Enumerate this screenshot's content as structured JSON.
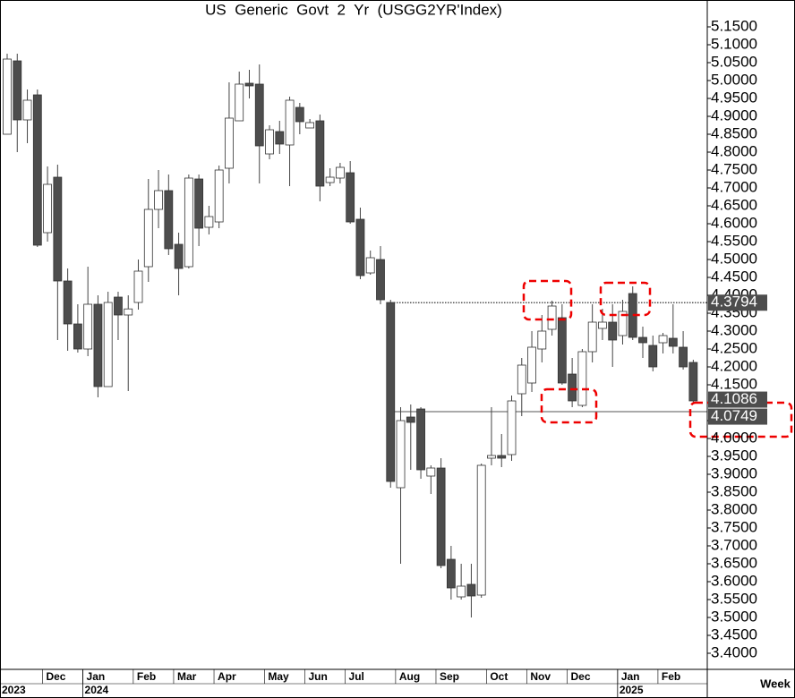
{
  "chart_data": {
    "type": "candlestick",
    "title": "US  Generic  Govt  2  Yr  (USGG2YR'Index)",
    "title_color": "#4b4bdd",
    "x_label": "Week",
    "categories": [
      null,
      null,
      null,
      null,
      "Dec",
      null,
      null,
      null,
      "Jan",
      null,
      null,
      null,
      null,
      "Feb",
      null,
      null,
      null,
      "Mar",
      null,
      null,
      null,
      "Apr",
      null,
      null,
      null,
      null,
      "May",
      null,
      null,
      null,
      "Jun",
      null,
      null,
      null,
      "Jul",
      null,
      null,
      null,
      null,
      "Aug",
      null,
      null,
      null,
      "Sep",
      null,
      null,
      null,
      null,
      "Oct",
      null,
      null,
      null,
      "Nov",
      null,
      null,
      null,
      "Dec",
      null,
      null,
      null,
      null,
      "Jan",
      null,
      null,
      null,
      "Feb",
      null,
      null,
      null
    ],
    "year_categories": [
      "2023",
      null,
      null,
      null,
      null,
      null,
      null,
      null,
      "2024",
      null,
      null,
      null,
      null,
      null,
      null,
      null,
      null,
      null,
      null,
      null,
      null,
      null,
      null,
      null,
      null,
      null,
      null,
      null,
      null,
      null,
      null,
      null,
      null,
      null,
      null,
      null,
      null,
      null,
      null,
      null,
      null,
      null,
      null,
      null,
      null,
      null,
      null,
      null,
      null,
      null,
      null,
      null,
      null,
      null,
      null,
      null,
      null,
      null,
      null,
      null,
      null,
      "2025",
      null,
      null,
      null,
      null,
      null,
      null,
      null
    ],
    "open": [
      4.85,
      5.055,
      4.89,
      4.96,
      4.575,
      4.73,
      4.44,
      4.32,
      4.25,
      4.375,
      4.145,
      4.395,
      4.345,
      4.38,
      4.48,
      4.64,
      4.6925,
      4.5425,
      4.48,
      4.725,
      4.59,
      4.605,
      4.755,
      4.8875,
      4.9925,
      4.99,
      4.795,
      4.8575,
      4.82,
      4.925,
      4.8675,
      4.8875,
      4.715,
      4.7275,
      4.7425,
      4.6125,
      4.4625,
      4.5,
      4.38,
      3.8625,
      4.06,
      4.0825,
      3.895,
      3.9175,
      3.6625,
      3.5575,
      3.5925,
      3.5625,
      3.945,
      3.9525,
      3.955,
      4.125,
      4.155,
      4.25,
      4.305,
      4.3375,
      4.18,
      4.0925,
      4.2425,
      4.3075,
      4.325,
      4.2875,
      4.405,
      4.2825,
      4.26,
      4.2675,
      4.28,
      4.255,
      4.2125
    ],
    "high": [
      5.075,
      5.075,
      4.975,
      4.975,
      4.76,
      4.765,
      4.475,
      4.375,
      4.48,
      4.4,
      4.41,
      4.41,
      4.4,
      4.5,
      4.725,
      4.75,
      4.7375,
      4.575,
      4.7375,
      4.7375,
      4.65,
      4.7625,
      4.995,
      5.025,
      5.03,
      5.045,
      4.875,
      4.8875,
      4.955,
      4.9375,
      4.8925,
      4.905,
      4.755,
      4.77,
      4.775,
      4.645,
      4.525,
      4.5375,
      4.3875,
      4.0875,
      4.095,
      4.0875,
      3.925,
      3.945,
      3.7,
      3.65,
      3.65,
      3.93,
      4.0875,
      4.0125,
      4.12,
      4.225,
      4.3,
      4.345,
      4.385,
      4.375,
      4.225,
      4.25,
      4.375,
      4.3625,
      4.375,
      4.3875,
      4.425,
      4.3125,
      4.2875,
      4.295,
      4.375,
      4.3,
      4.22
    ],
    "low": [
      4.85,
      4.8,
      4.825,
      4.535,
      4.55,
      4.275,
      4.245,
      4.24,
      4.23,
      4.115,
      4.145,
      4.275,
      4.1325,
      4.36,
      4.4375,
      4.5875,
      4.5125,
      4.4,
      4.475,
      4.5375,
      4.57,
      4.5875,
      4.7125,
      4.8875,
      4.95,
      4.7125,
      4.78,
      4.795,
      4.705,
      4.85,
      4.8675,
      4.6625,
      4.705,
      4.7125,
      4.6,
      4.445,
      4.4575,
      4.375,
      3.8625,
      3.65,
      3.9125,
      3.8875,
      3.845,
      3.6375,
      3.55,
      3.55,
      3.5,
      3.555,
      3.925,
      3.92,
      3.9375,
      4.0625,
      4.13,
      4.2125,
      4.2875,
      4.15,
      4.0875,
      4.0875,
      4.2125,
      4.275,
      4.2,
      4.2625,
      4.275,
      4.225,
      4.1875,
      4.2375,
      4.2375,
      4.1925,
      4.1
    ],
    "close": [
      5.06,
      4.89,
      4.945,
      4.54,
      4.71,
      4.44,
      4.32,
      4.25,
      4.375,
      4.145,
      4.38,
      4.345,
      4.362,
      4.4675,
      4.64,
      4.6925,
      4.53,
      4.475,
      4.7275,
      4.5875,
      4.62,
      4.75,
      4.895,
      4.99,
      4.985,
      4.8175,
      4.8625,
      4.8225,
      4.945,
      4.885,
      4.8825,
      4.705,
      4.73,
      4.7575,
      4.605,
      4.455,
      4.505,
      4.3875,
      3.88,
      4.05,
      4.045,
      3.9125,
      3.9175,
      3.645,
      3.5825,
      3.5875,
      3.56,
      3.925,
      3.9525,
      3.945,
      4.105,
      4.205,
      4.255,
      4.3,
      4.37,
      4.155,
      4.105,
      4.2425,
      4.325,
      4.325,
      4.275,
      4.355,
      4.2825,
      4.2675,
      4.2,
      4.2875,
      4.2575,
      4.2,
      4.105
    ],
    "up_color": "#ffffff",
    "down_color": "#4d4d4d",
    "ylim": [
      3.355,
      5.225
    ],
    "yticks": [
      {
        "value": 5.15,
        "label": "5.1500"
      },
      {
        "value": 5.1,
        "label": "5.1000"
      },
      {
        "value": 5.05,
        "label": "5.0500"
      },
      {
        "value": 5.0,
        "label": "5.0000"
      },
      {
        "value": 4.95,
        "label": "4.9500"
      },
      {
        "value": 4.9,
        "label": "4.9000"
      },
      {
        "value": 4.85,
        "label": "4.8500"
      },
      {
        "value": 4.8,
        "label": "4.8000"
      },
      {
        "value": 4.75,
        "label": "4.7500"
      },
      {
        "value": 4.7,
        "label": "4.7000"
      },
      {
        "value": 4.65,
        "label": "4.6500"
      },
      {
        "value": 4.6,
        "label": "4.6000"
      },
      {
        "value": 4.55,
        "label": "4.5500"
      },
      {
        "value": 4.5,
        "label": "4.5000"
      },
      {
        "value": 4.45,
        "label": "4.4500"
      },
      {
        "value": 4.4,
        "label": "4.4000"
      },
      {
        "value": 4.35,
        "label": "4.3500"
      },
      {
        "value": 4.3,
        "label": "4.3000"
      },
      {
        "value": 4.25,
        "label": "4.2500"
      },
      {
        "value": 4.2,
        "label": "4.2000"
      },
      {
        "value": 4.15,
        "label": "4.1500"
      },
      {
        "value": 4.1,
        "label": "4.1000"
      },
      {
        "value": 4.05,
        "label": "4.0500"
      },
      {
        "value": 4.0,
        "label": "4.0000"
      },
      {
        "value": 3.95,
        "label": "3.9500"
      },
      {
        "value": 3.9,
        "label": "3.9000"
      },
      {
        "value": 3.85,
        "label": "3.8500"
      },
      {
        "value": 3.8,
        "label": "3.8000"
      },
      {
        "value": 3.75,
        "label": "3.7500"
      },
      {
        "value": 3.7,
        "label": "3.7000"
      },
      {
        "value": 3.65,
        "label": "3.6500"
      },
      {
        "value": 3.6,
        "label": "3.6000"
      },
      {
        "value": 3.55,
        "label": "3.5500"
      },
      {
        "value": 3.5,
        "label": "3.5000"
      },
      {
        "value": 3.45,
        "label": "3.4500"
      },
      {
        "value": 3.4,
        "label": "3.4000"
      }
    ],
    "price_labels": [
      {
        "value": 4.3794,
        "line": "dotted"
      },
      {
        "value": 4.1086
      },
      {
        "value": 4.0749,
        "line": "solid"
      }
    ]
  }
}
